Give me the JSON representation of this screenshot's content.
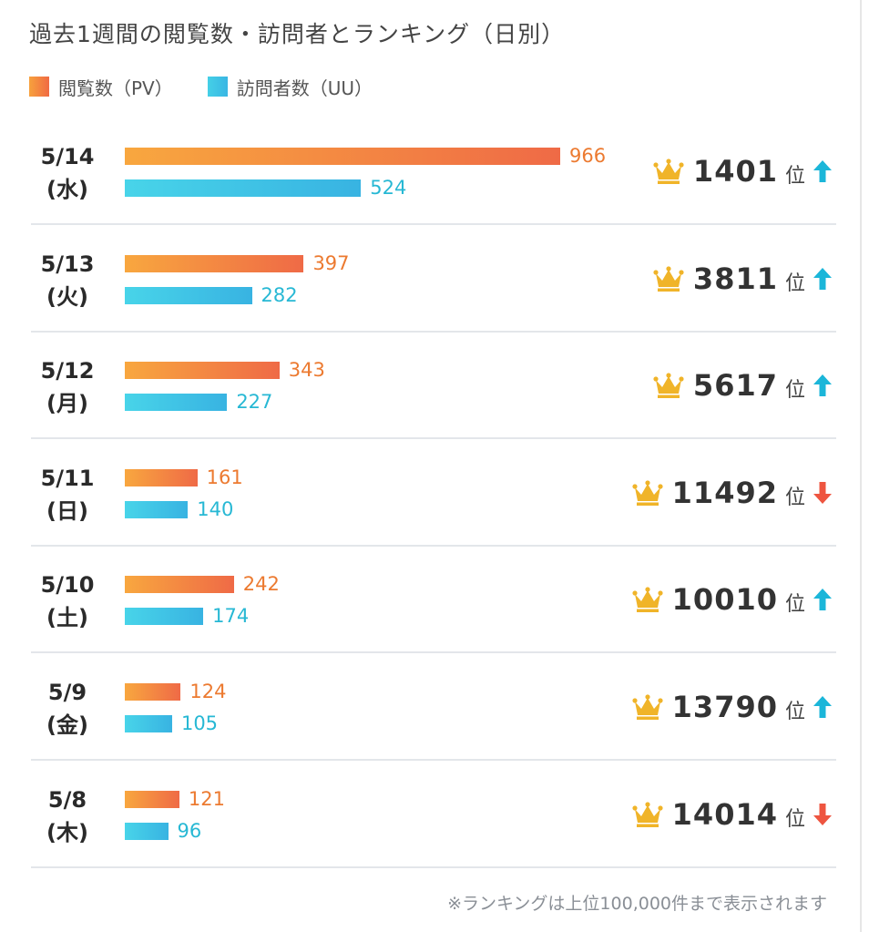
{
  "title": "過去1週間の閲覧数・訪問者とランキング（日別）",
  "legend": {
    "pv_label": "閲覧数（PV）",
    "uu_label": "訪問者数（UU）"
  },
  "colors": {
    "pv": "#f07a3a",
    "uu": "#3fc3e6",
    "up": "#1bb6d9",
    "down": "#ee5540",
    "crown": "#f0b429"
  },
  "rank_unit": "位",
  "footnote": "※ランキングは上位100,000件まで表示されます",
  "chart_data": {
    "type": "bar",
    "orientation": "horizontal",
    "categories": [
      "5/14 (水)",
      "5/13 (火)",
      "5/12 (月)",
      "5/11 (日)",
      "5/10 (土)",
      "5/9 (金)",
      "5/8 (木)"
    ],
    "dates": [
      "5/14",
      "5/13",
      "5/12",
      "5/11",
      "5/10",
      "5/9",
      "5/8"
    ],
    "weekdays": [
      "(水)",
      "(火)",
      "(月)",
      "(日)",
      "(土)",
      "(金)",
      "(木)"
    ],
    "series": [
      {
        "name": "閲覧数（PV）",
        "values": [
          966,
          397,
          343,
          161,
          242,
          124,
          121
        ]
      },
      {
        "name": "訪問者数（UU）",
        "values": [
          524,
          282,
          227,
          140,
          174,
          105,
          96
        ]
      }
    ],
    "ranking": [
      1401,
      3811,
      5617,
      11492,
      10010,
      13790,
      14014
    ],
    "rank_trend": [
      "up",
      "up",
      "up",
      "down",
      "up",
      "up",
      "down"
    ],
    "legend_position": "top-left",
    "grid": false
  }
}
